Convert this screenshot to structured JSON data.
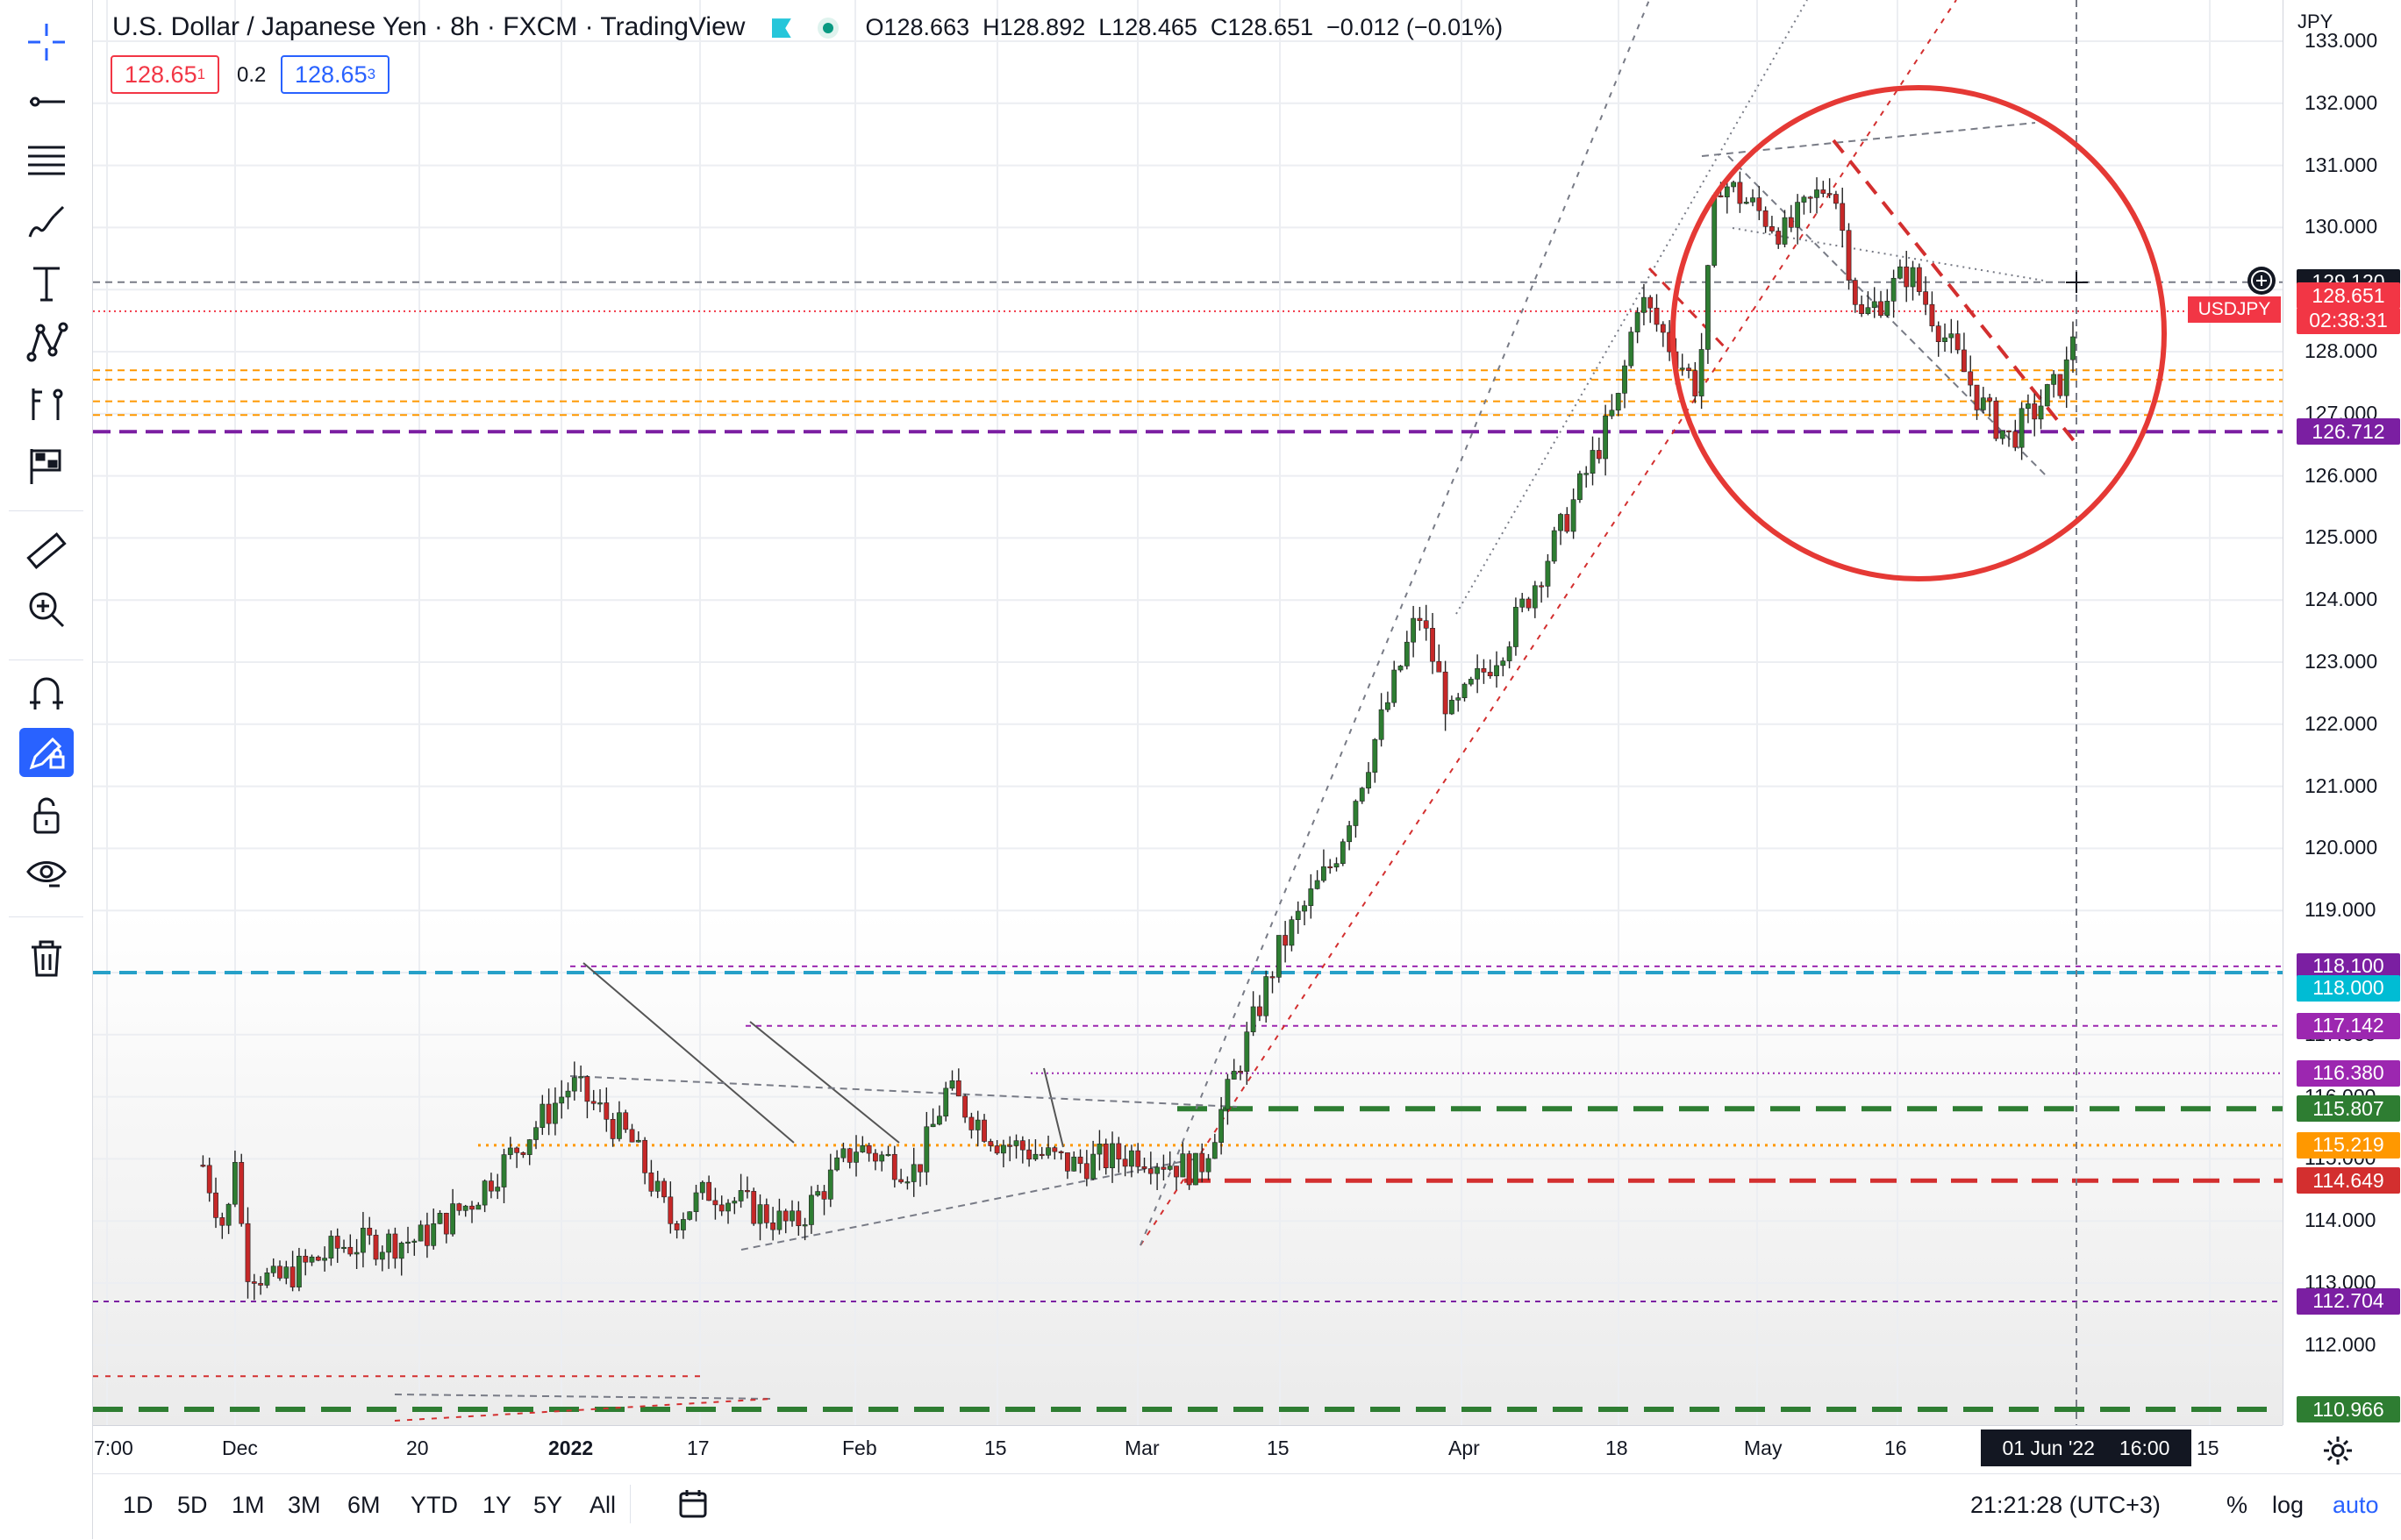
{
  "toolbar": {
    "icons": [
      "crosshair-icon",
      "trend-line-icon",
      "fib-retracement-icon",
      "brush-icon",
      "text-icon",
      "pattern-icon",
      "forecast-icon",
      "icon-tools-icon",
      "ruler-icon",
      "zoom-in-icon",
      "magnet-icon",
      "lock-drawing-icon",
      "unlock-icon",
      "eye-icon",
      "trash-icon"
    ]
  },
  "legend": {
    "symbol": "U.S. Dollar / Japanese Yen · 8h · FXCM · TradingView",
    "open_label": "O",
    "open": "128.663",
    "high_label": "H",
    "high": "128.892",
    "low_label": "L",
    "low": "128.465",
    "close_label": "C",
    "close": "128.651",
    "change": "−0.012 (−0.01%)",
    "sell_price_main": "128.65",
    "sell_price_sup": "1",
    "spread": "0.2",
    "buy_price_main": "128.65",
    "buy_price_sup": "3"
  },
  "price_axis": {
    "currency": "JPY",
    "ticks": [
      "133.000",
      "132.000",
      "131.000",
      "130.000",
      "129.000",
      "128.000",
      "127.000",
      "126.000",
      "125.000",
      "124.000",
      "123.000",
      "122.000",
      "121.000",
      "120.000",
      "119.000",
      "118.000",
      "117.000",
      "116.000",
      "115.000",
      "114.000",
      "113.000",
      "112.000"
    ],
    "tags": [
      {
        "label": "129.120",
        "color": "#131722"
      },
      {
        "label": "128.651",
        "color": "#f23645"
      },
      {
        "label": "02:38:31",
        "color": "#f23645"
      },
      {
        "label": "126.712",
        "color": "#7b1fa2"
      },
      {
        "label": "118.100",
        "color": "#7b1fa2"
      },
      {
        "label": "118.000",
        "color": "#00bcd4"
      },
      {
        "label": "117.142",
        "color": "#9c27b0"
      },
      {
        "label": "116.380",
        "color": "#9c27b0"
      },
      {
        "label": "115.807",
        "color": "#2e7d32"
      },
      {
        "label": "115.219",
        "color": "#ff9800"
      },
      {
        "label": "114.649",
        "color": "#d32f2f"
      },
      {
        "label": "112.704",
        "color": "#7b1fa2"
      },
      {
        "label": "110.966",
        "color": "#2e7d32"
      }
    ],
    "symbol_tag": "USDJPY"
  },
  "time_axis": {
    "labels": [
      "7:00",
      "Dec",
      "20",
      "2022",
      "17",
      "Feb",
      "15",
      "Mar",
      "15",
      "Apr",
      "18",
      "May",
      "16",
      "15"
    ],
    "crosshair_date": "01 Jun '22",
    "crosshair_time": "16:00"
  },
  "bottom_bar": {
    "ranges": [
      "1D",
      "5D",
      "1M",
      "3M",
      "6M",
      "YTD",
      "1Y",
      "5Y",
      "All"
    ],
    "clock": "21:21:28 (UTC+3)",
    "percent": "%",
    "log": "log",
    "auto": "auto"
  },
  "chart_data": {
    "type": "candlestick",
    "symbol": "USDJPY",
    "interval": "8h",
    "ylim": [
      110.5,
      133.0
    ],
    "close_path": [
      {
        "x": "Nov 25",
        "y": 114.9
      },
      {
        "x": "Nov 30",
        "y": 113.8
      },
      {
        "x": "Dec 1",
        "y": 115.1
      },
      {
        "x": "Dec 2",
        "y": 113.3
      },
      {
        "x": "Dec 5",
        "y": 113.0
      },
      {
        "x": "Dec 12",
        "y": 113.6
      },
      {
        "x": "Dec 20",
        "y": 113.7
      },
      {
        "x": "Dec 25",
        "y": 114.3
      },
      {
        "x": "Jan 4",
        "y": 116.2
      },
      {
        "x": "Jan 10",
        "y": 115.3
      },
      {
        "x": "Jan 14",
        "y": 114.0
      },
      {
        "x": "Jan 18",
        "y": 114.5
      },
      {
        "x": "Jan 26",
        "y": 113.9
      },
      {
        "x": "Feb 1",
        "y": 115.2
      },
      {
        "x": "Feb 7",
        "y": 114.8
      },
      {
        "x": "Feb 10",
        "y": 116.1
      },
      {
        "x": "Feb 15",
        "y": 115.3
      },
      {
        "x": "Feb 24",
        "y": 114.9
      },
      {
        "x": "Mar 1",
        "y": 115.1
      },
      {
        "x": "Mar 7",
        "y": 114.8
      },
      {
        "x": "Mar 10",
        "y": 116.1
      },
      {
        "x": "Mar 15",
        "y": 118.4
      },
      {
        "x": "Mar 20",
        "y": 119.8
      },
      {
        "x": "Mar 28",
        "y": 123.8
      },
      {
        "x": "Mar 31",
        "y": 122.1
      },
      {
        "x": "Apr 6",
        "y": 123.4
      },
      {
        "x": "Apr 12",
        "y": 125.2
      },
      {
        "x": "Apr 18",
        "y": 127.2
      },
      {
        "x": "Apr 20",
        "y": 128.9
      },
      {
        "x": "Apr 26",
        "y": 127.4
      },
      {
        "x": "Apr 28",
        "y": 130.8
      },
      {
        "x": "May 4",
        "y": 129.9
      },
      {
        "x": "May 9",
        "y": 130.8
      },
      {
        "x": "May 12",
        "y": 128.5
      },
      {
        "x": "May 17",
        "y": 129.3
      },
      {
        "x": "May 24",
        "y": 127.0
      },
      {
        "x": "May 26",
        "y": 126.6
      },
      {
        "x": "May 31",
        "y": 127.6
      },
      {
        "x": "Jun 1",
        "y": 128.65
      }
    ]
  }
}
